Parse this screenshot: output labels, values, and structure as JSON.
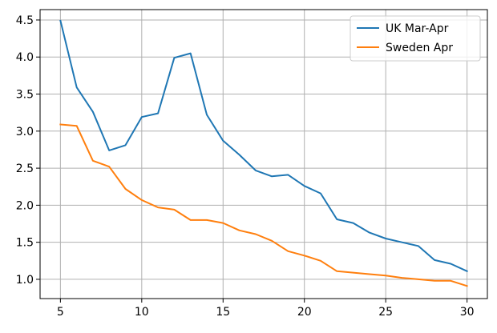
{
  "chart_data": {
    "type": "line",
    "title": "",
    "xlabel": "",
    "ylabel": "",
    "xlim": [
      3.75,
      31.25
    ],
    "ylim": [
      0.74,
      4.64
    ],
    "xticks": [
      5,
      10,
      15,
      20,
      25,
      30
    ],
    "yticks": [
      1.0,
      1.5,
      2.0,
      2.5,
      3.0,
      3.5,
      4.0,
      4.5
    ],
    "grid": true,
    "legend_position": "top-right",
    "x": [
      5,
      6,
      7,
      8,
      9,
      10,
      11,
      12,
      13,
      14,
      15,
      16,
      17,
      18,
      19,
      20,
      21,
      22,
      23,
      24,
      25,
      26,
      27,
      28,
      29,
      30
    ],
    "series": [
      {
        "name": "UK Mar-Apr",
        "color": "#1f77b4",
        "values": [
          4.49,
          3.59,
          3.26,
          2.74,
          2.81,
          3.19,
          3.24,
          3.99,
          4.05,
          3.22,
          2.87,
          2.68,
          2.47,
          2.39,
          2.41,
          2.26,
          2.16,
          1.81,
          1.76,
          1.63,
          1.55,
          1.5,
          1.45,
          1.26,
          1.21,
          1.11
        ]
      },
      {
        "name": "Sweden Apr",
        "color": "#ff7f0e",
        "values": [
          3.09,
          3.07,
          2.6,
          2.52,
          2.22,
          2.07,
          1.97,
          1.94,
          1.8,
          1.8,
          1.76,
          1.66,
          1.61,
          1.52,
          1.38,
          1.32,
          1.25,
          1.11,
          1.09,
          1.07,
          1.05,
          1.02,
          1.0,
          0.98,
          0.98,
          0.91
        ]
      }
    ]
  }
}
